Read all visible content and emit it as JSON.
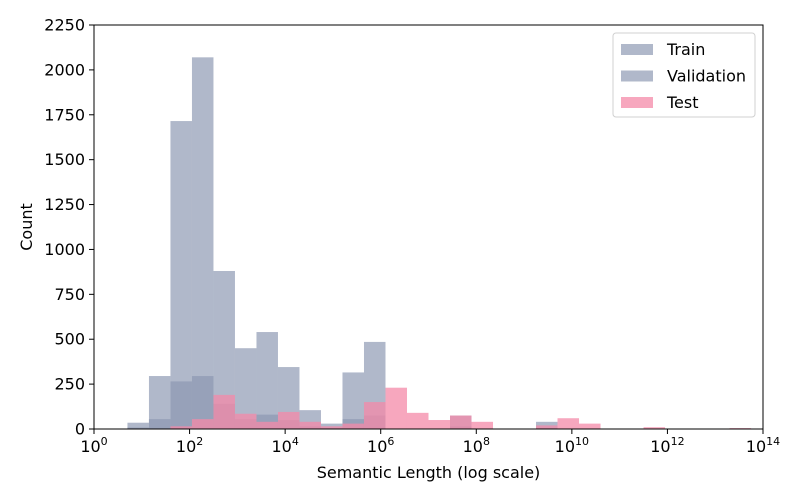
{
  "chart_data": {
    "type": "bar",
    "xlabel": "Semantic Length (log scale)",
    "ylabel": "Count",
    "xscale": "log",
    "xlim_exp": [
      0,
      14
    ],
    "ylim": [
      0,
      2250
    ],
    "x_ticks": [
      {
        "base": "10",
        "exp": "0",
        "value": 0
      },
      {
        "base": "10",
        "exp": "2",
        "value": 2
      },
      {
        "base": "10",
        "exp": "4",
        "value": 4
      },
      {
        "base": "10",
        "exp": "6",
        "value": 6
      },
      {
        "base": "10",
        "exp": "8",
        "value": 8
      },
      {
        "base": "10",
        "exp": "10",
        "value": 10
      },
      {
        "base": "10",
        "exp": "12",
        "value": 12
      },
      {
        "base": "10",
        "exp": "14",
        "value": 14
      }
    ],
    "y_ticks": [
      "0",
      "250",
      "500",
      "750",
      "1000",
      "1250",
      "1500",
      "1750",
      "2000",
      "2250"
    ],
    "grid": false,
    "legend_position": "top-right",
    "bin_log_edges": [
      0.7,
      1.15,
      1.6,
      2.05,
      2.5,
      2.95,
      3.4,
      3.85,
      4.3,
      4.75,
      5.2,
      5.65,
      6.1,
      6.55,
      7.0,
      7.45,
      7.9,
      8.35,
      8.8,
      9.25,
      9.7,
      10.15,
      10.6,
      11.05,
      11.5,
      11.95,
      12.4,
      12.85,
      13.3,
      13.75
    ],
    "series": [
      {
        "name": "Train",
        "color": "#8a96b1",
        "values": [
          35,
          295,
          1715,
          2070,
          880,
          450,
          540,
          345,
          105,
          30,
          315,
          485,
          0,
          0,
          0,
          75,
          0,
          0,
          0,
          40,
          0,
          0,
          0,
          0,
          0,
          0,
          0,
          0,
          0
        ]
      },
      {
        "name": "Validation",
        "color": "#8a96b1",
        "values": [
          8,
          55,
          265,
          295,
          140,
          55,
          80,
          50,
          15,
          5,
          55,
          75,
          0,
          0,
          0,
          15,
          0,
          0,
          0,
          5,
          0,
          0,
          0,
          0,
          0,
          0,
          0,
          0,
          0
        ]
      },
      {
        "name": "Test",
        "color": "#f48aa8",
        "values": [
          0,
          0,
          15,
          55,
          190,
          85,
          40,
          95,
          40,
          15,
          30,
          150,
          230,
          90,
          50,
          75,
          40,
          0,
          0,
          20,
          60,
          30,
          0,
          0,
          10,
          0,
          0,
          0,
          5
        ]
      }
    ]
  }
}
